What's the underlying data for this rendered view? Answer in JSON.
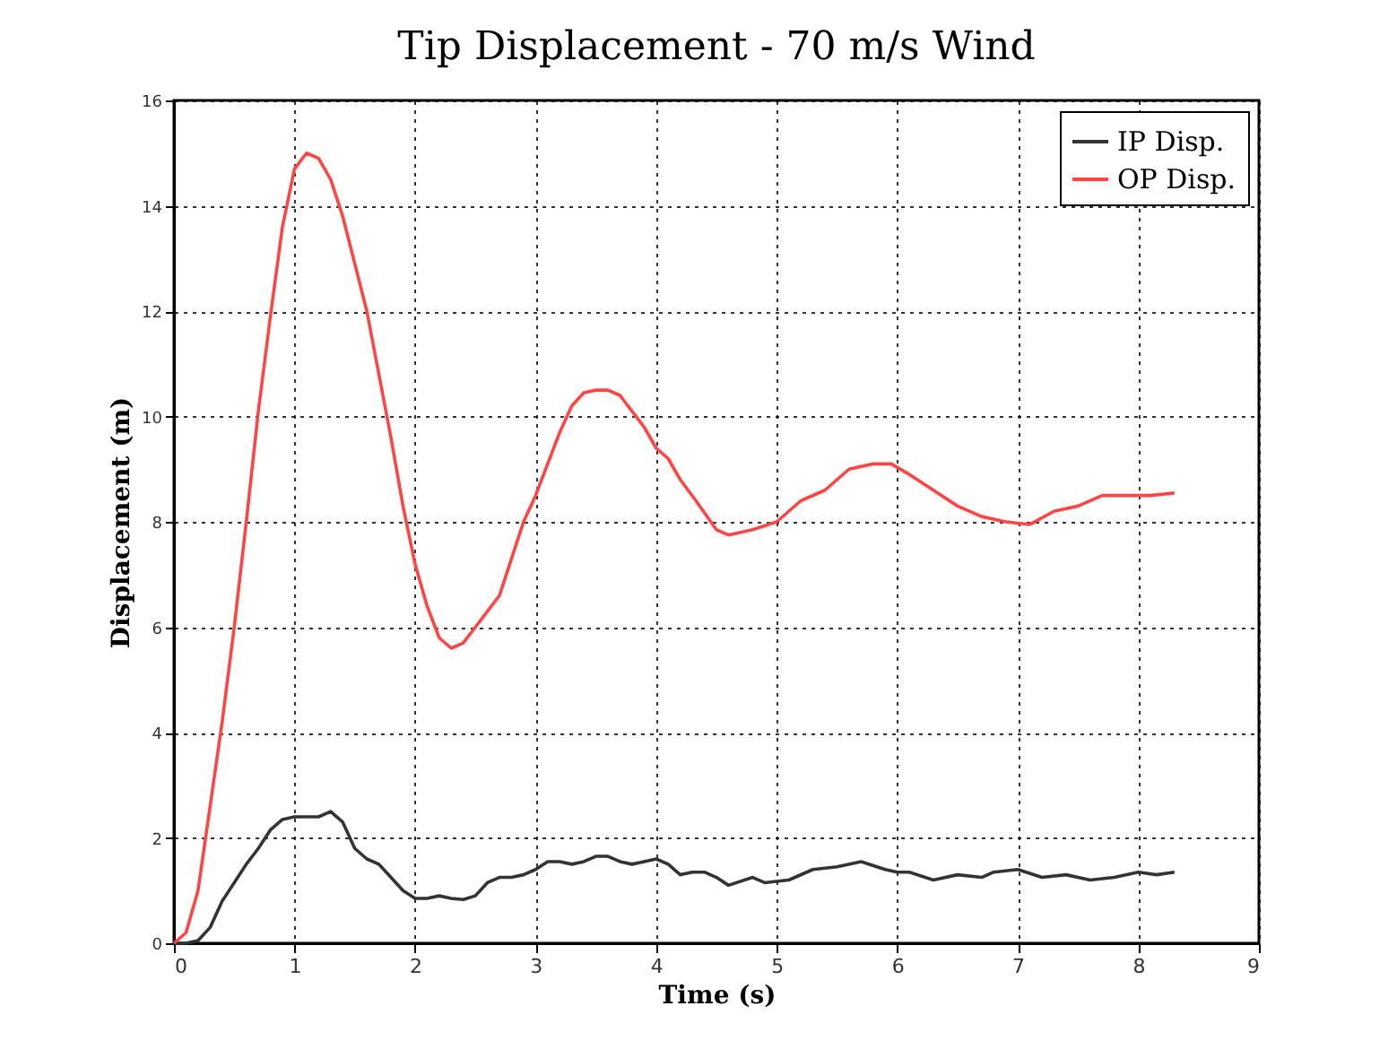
{
  "chart_data": {
    "type": "line",
    "title": "Tip Displacement - 70 m/s Wind",
    "xlabel": "Time (s)",
    "ylabel": "Displacement (m)",
    "xlim": [
      0,
      9
    ],
    "xticks": [
      0,
      1,
      2,
      3,
      4,
      5,
      6,
      7,
      8,
      9
    ],
    "ylim": [
      0,
      16
    ],
    "yticks": [
      0,
      2,
      4,
      6,
      8,
      10,
      12,
      14,
      16
    ],
    "grid": true,
    "legend": "top right",
    "marker": "none",
    "line_style": "solid",
    "series": [
      {
        "name": "IP Disp.",
        "color": "#333333",
        "x": [
          0,
          0.1,
          0.2,
          0.3,
          0.4,
          0.5,
          0.6,
          0.7,
          0.8,
          0.9,
          1.0,
          1.1,
          1.2,
          1.3,
          1.4,
          1.5,
          1.6,
          1.7,
          1.8,
          1.9,
          2.0,
          2.1,
          2.2,
          2.3,
          2.4,
          2.5,
          2.6,
          2.7,
          2.8,
          2.9,
          3.0,
          3.1,
          3.2,
          3.3,
          3.4,
          3.5,
          3.6,
          3.7,
          3.8,
          3.9,
          4.0,
          4.1,
          4.2,
          4.3,
          4.4,
          4.5,
          4.6,
          4.8,
          4.9,
          5.1,
          5.3,
          5.5,
          5.7,
          5.9,
          6.0,
          6.1,
          6.3,
          6.5,
          6.7,
          6.8,
          7.0,
          7.2,
          7.4,
          7.6,
          7.8,
          8.0,
          8.15,
          8.3
        ],
        "values": [
          0,
          0,
          0.05,
          0.3,
          0.8,
          1.15,
          1.5,
          1.8,
          2.15,
          2.35,
          2.4,
          2.4,
          2.4,
          2.5,
          2.3,
          1.8,
          1.6,
          1.5,
          1.25,
          1.0,
          0.85,
          0.85,
          0.9,
          0.85,
          0.83,
          0.9,
          1.15,
          1.25,
          1.25,
          1.3,
          1.4,
          1.55,
          1.55,
          1.5,
          1.55,
          1.65,
          1.65,
          1.55,
          1.5,
          1.55,
          1.6,
          1.5,
          1.3,
          1.35,
          1.35,
          1.25,
          1.1,
          1.25,
          1.15,
          1.2,
          1.4,
          1.45,
          1.55,
          1.4,
          1.35,
          1.35,
          1.2,
          1.3,
          1.25,
          1.35,
          1.4,
          1.25,
          1.3,
          1.2,
          1.25,
          1.35,
          1.3,
          1.35
        ]
      },
      {
        "name": "OP Disp.",
        "color": "#ff4444",
        "x": [
          0,
          0.1,
          0.2,
          0.3,
          0.4,
          0.5,
          0.6,
          0.7,
          0.8,
          0.9,
          1.0,
          1.1,
          1.2,
          1.3,
          1.4,
          1.5,
          1.6,
          1.7,
          1.8,
          1.9,
          2.0,
          2.1,
          2.2,
          2.3,
          2.4,
          2.5,
          2.6,
          2.7,
          2.8,
          2.9,
          3.0,
          3.1,
          3.2,
          3.3,
          3.4,
          3.5,
          3.6,
          3.7,
          3.8,
          3.9,
          4.0,
          4.1,
          4.2,
          4.33,
          4.5,
          4.6,
          4.8,
          5.0,
          5.2,
          5.4,
          5.6,
          5.8,
          5.95,
          6.1,
          6.3,
          6.5,
          6.7,
          6.9,
          7.1,
          7.3,
          7.5,
          7.7,
          7.9,
          8.1,
          8.3
        ],
        "values": [
          0,
          0.2,
          1.0,
          2.6,
          4.2,
          6.0,
          8.0,
          10.1,
          11.9,
          13.6,
          14.7,
          15.0,
          14.9,
          14.5,
          13.8,
          12.9,
          12.0,
          10.8,
          9.6,
          8.3,
          7.2,
          6.4,
          5.8,
          5.6,
          5.7,
          6.0,
          6.3,
          6.6,
          7.3,
          8.0,
          8.5,
          9.1,
          9.7,
          10.2,
          10.45,
          10.5,
          10.5,
          10.4,
          10.1,
          9.8,
          9.4,
          9.2,
          8.8,
          8.4,
          7.85,
          7.75,
          7.85,
          8.0,
          8.4,
          8.6,
          9.0,
          9.1,
          9.1,
          8.9,
          8.6,
          8.3,
          8.1,
          8.0,
          7.95,
          8.2,
          8.3,
          8.5,
          8.5,
          8.5,
          8.55
        ]
      }
    ]
  }
}
